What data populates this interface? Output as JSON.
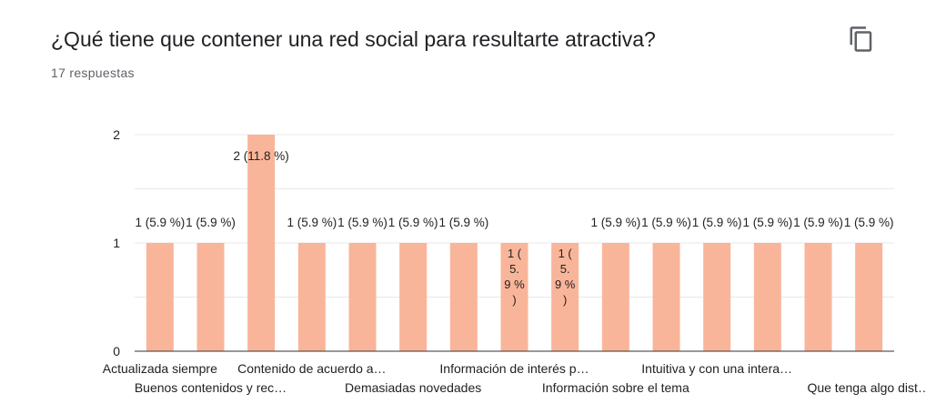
{
  "header": {
    "title": "¿Qué tiene que contener una red social para resultarte atractiva?",
    "responses": "17 respuestas",
    "copy_icon": "copy-icon"
  },
  "colors": {
    "bar": "#f9b59a",
    "grid": "#e8e8e8",
    "axis": "#333333",
    "text": "#222222"
  },
  "chart_data": {
    "type": "bar",
    "categories": [
      "Actualizada siempre",
      "Buenos contenidos y rec…",
      "",
      "Contenido de acuerdo a…",
      "",
      "Demasiadas novedades",
      "",
      "Información de interés p…",
      "",
      "Información sobre el tema",
      "",
      "Intuitiva y con una intera…",
      "",
      "",
      "Que tenga algo dist…"
    ],
    "values": [
      1,
      1,
      2,
      1,
      1,
      1,
      1,
      1,
      1,
      1,
      1,
      1,
      1,
      1,
      1
    ],
    "value_labels": [
      "1 (5.9 %)",
      "1 (5.9 %)",
      "2 (11.8 %)",
      "1 (5.9 %)",
      "1 (5.9 %)",
      "1 (5.9 %)",
      "1 (5.9 %)",
      "1 (5.9 %)",
      "1 (5.9 %)",
      "1 (5.9 %)",
      "1 (5.9 %)",
      "1 (5.9 %)",
      "1 (5.9 %)",
      "1 (5.9 %)",
      "1 (5.9 %)"
    ],
    "yticks": [
      "0",
      "1",
      "2"
    ],
    "ylim": [
      0,
      2
    ],
    "grid": true
  }
}
